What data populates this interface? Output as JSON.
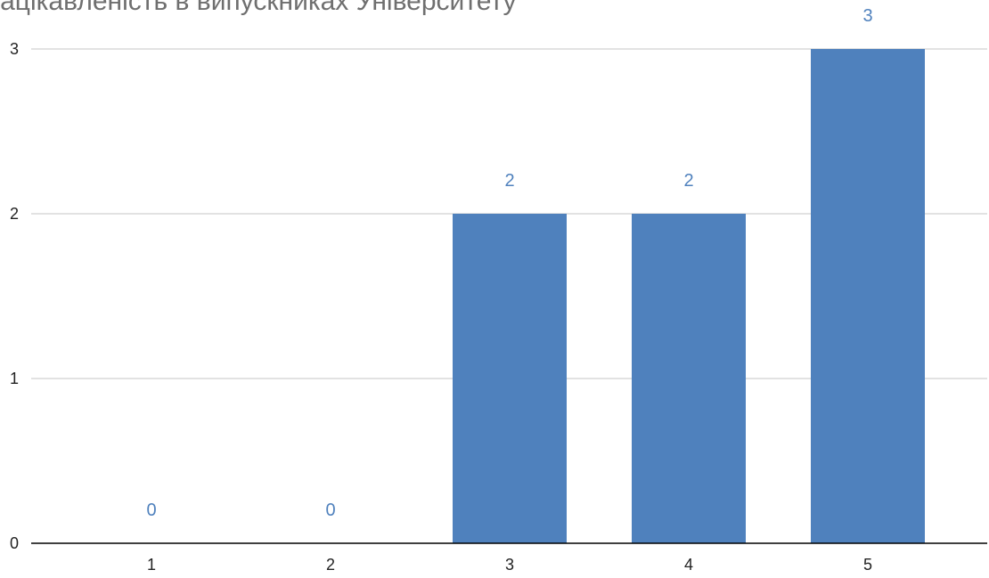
{
  "chart_data": {
    "type": "bar",
    "title": "Зацікавленість в випускниках Університету",
    "categories": [
      "1",
      "2",
      "3",
      "4",
      "5"
    ],
    "values": [
      0,
      0,
      2,
      2,
      3
    ],
    "ylim": [
      0,
      3
    ],
    "yticks": [
      "0",
      "1",
      "2",
      "3"
    ],
    "grid": true,
    "legend": "none",
    "data_labels": [
      "0",
      "0",
      "2",
      "2",
      "3"
    ],
    "colors": {
      "bar": "#4f81bd",
      "data_label": "#4f81bd",
      "grid": "#d9d9d9",
      "axis": "#000000",
      "title": "#6f6f6f"
    }
  }
}
